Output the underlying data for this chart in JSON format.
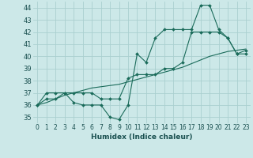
{
  "xlabel": "Humidex (Indice chaleur)",
  "bg_color": "#cce8e8",
  "grid_color": "#aad0d0",
  "line_color": "#1a6b5a",
  "xlim": [
    -0.5,
    23.5
  ],
  "ylim": [
    34.5,
    44.5
  ],
  "yticks": [
    35,
    36,
    37,
    38,
    39,
    40,
    41,
    42,
    43,
    44
  ],
  "xticks": [
    0,
    1,
    2,
    3,
    4,
    5,
    6,
    7,
    8,
    9,
    10,
    11,
    12,
    13,
    14,
    15,
    16,
    17,
    18,
    19,
    20,
    21,
    22,
    23
  ],
  "series1_x": [
    0,
    1,
    2,
    3,
    4,
    5,
    6,
    7,
    8,
    9,
    10,
    11,
    12,
    13,
    14,
    15,
    16,
    17,
    18,
    19,
    20,
    21,
    22,
    23
  ],
  "series1_y": [
    36.0,
    37.0,
    37.0,
    37.0,
    36.2,
    36.0,
    36.0,
    36.0,
    35.0,
    34.8,
    36.0,
    40.2,
    39.5,
    41.5,
    42.2,
    42.2,
    42.2,
    42.2,
    44.2,
    44.2,
    42.2,
    41.5,
    40.2,
    40.5
  ],
  "series2_x": [
    0,
    1,
    2,
    3,
    4,
    5,
    6,
    7,
    8,
    9,
    10,
    11,
    12,
    13,
    14,
    15,
    16,
    17,
    18,
    19,
    20,
    21,
    22,
    23
  ],
  "series2_y": [
    36.0,
    36.5,
    36.5,
    37.0,
    37.0,
    37.0,
    37.0,
    36.5,
    36.5,
    36.5,
    38.2,
    38.5,
    38.5,
    38.5,
    39.0,
    39.0,
    39.5,
    42.0,
    42.0,
    42.0,
    42.0,
    41.5,
    40.2,
    40.2
  ],
  "series3_x": [
    0,
    1,
    2,
    3,
    4,
    5,
    6,
    7,
    8,
    9,
    10,
    11,
    12,
    13,
    14,
    15,
    16,
    17,
    18,
    19,
    20,
    21,
    22,
    23
  ],
  "series3_y": [
    36.0,
    36.2,
    36.5,
    36.8,
    37.0,
    37.2,
    37.4,
    37.5,
    37.6,
    37.7,
    37.9,
    38.1,
    38.3,
    38.5,
    38.7,
    38.9,
    39.1,
    39.4,
    39.7,
    40.0,
    40.2,
    40.4,
    40.5,
    40.6
  ],
  "xlabel_fontsize": 6.5,
  "tick_fontsize": 5.5
}
